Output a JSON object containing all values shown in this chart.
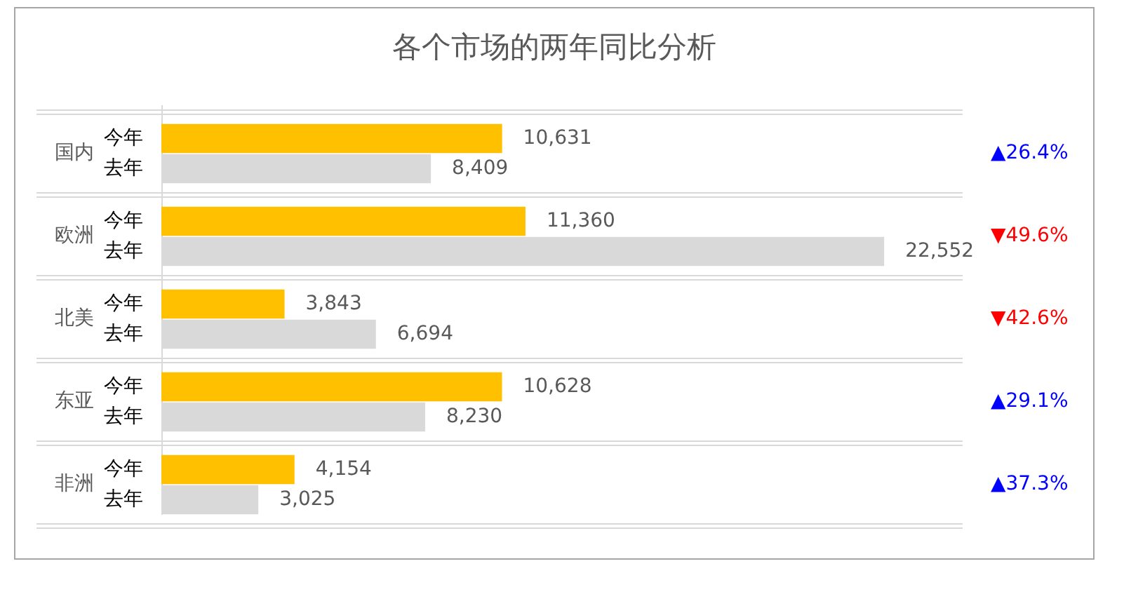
{
  "chart_data": {
    "type": "bar",
    "orientation": "horizontal",
    "title": "各个市场的两年同比分析",
    "categories": [
      "国内",
      "欧洲",
      "北美",
      "东亚",
      "非洲"
    ],
    "series": [
      {
        "name": "今年",
        "color": "#ffc000",
        "values": [
          10631,
          11360,
          3843,
          10628,
          4154
        ],
        "value_labels": [
          "10,631",
          "11,360",
          "3,843",
          "10,628",
          "4,154"
        ]
      },
      {
        "name": "去年",
        "color": "#d9d9d9",
        "values": [
          8409,
          22552,
          6694,
          8230,
          3025
        ],
        "value_labels": [
          "8,409",
          "22,552",
          "6,694",
          "8,230",
          "3,025"
        ]
      }
    ],
    "tick_labels": "y",
    "grid": "y",
    "annotations": [
      "▲26.4%",
      "▼49.6%",
      "▼42.6%",
      "▲29.1%",
      "▲37.3%"
    ]
  }
}
